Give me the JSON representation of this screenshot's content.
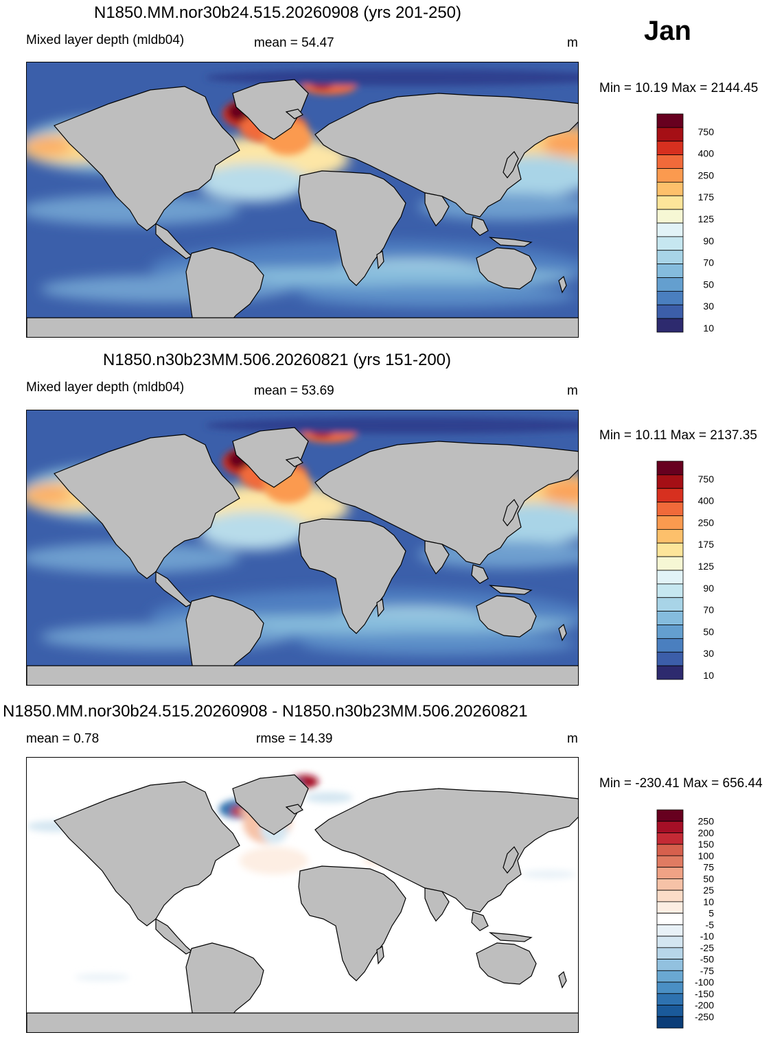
{
  "month": "Jan",
  "units": "m",
  "land_color": "#bebebe",
  "panels": [
    {
      "title": "N1850.MM.nor30b24.515.20260908 (yrs 201-250)",
      "left_label": "Mixed layer depth (mldb04)",
      "stat_label": "mean =  54.47",
      "units": "m",
      "minmax": "Min =  10.19 Max = 2144.45",
      "map_type": "mld"
    },
    {
      "title": "N1850.n30b23MM.506.20260821 (yrs 151-200)",
      "left_label": "Mixed layer depth (mldb04)",
      "stat_label": "mean =  53.69",
      "units": "m",
      "minmax": "Min =  10.11 Max = 2137.35",
      "map_type": "mld"
    },
    {
      "title": "N1850.MM.nor30b24.515.20260908 - N1850.n30b23MM.506.20260821",
      "left_label": "mean =   0.78",
      "stat_label": "rmse =  14.39",
      "units": "m",
      "minmax": "Min = -230.41 Max = 656.44",
      "map_type": "diff"
    }
  ],
  "colorbar_mld": {
    "labels": [
      "750",
      "400",
      "250",
      "175",
      "125",
      "90",
      "70",
      "50",
      "30",
      "10"
    ],
    "colors": [
      "#67001f",
      "#a50f15",
      "#d7301f",
      "#f16a3a",
      "#fb9a4f",
      "#fdc06b",
      "#fde59a",
      "#f6f7d4",
      "#e2f3f7",
      "#c6e7f0",
      "#a8d4e7",
      "#85bcdd",
      "#649fcf",
      "#4a7fbf",
      "#3c5ea9",
      "#2d2a6e"
    ]
  },
  "colorbar_diff": {
    "labels": [
      "250",
      "200",
      "150",
      "100",
      "75",
      "50",
      "25",
      "10",
      "5",
      "-5",
      "-10",
      "-25",
      "-50",
      "-75",
      "-100",
      "-150",
      "-200",
      "-250"
    ],
    "colors": [
      "#67001f",
      "#a50f26",
      "#c42a35",
      "#d6604d",
      "#e07b62",
      "#f0a285",
      "#f6c2a7",
      "#fbdcc8",
      "#fdeee3",
      "#ffffff",
      "#e8f1f7",
      "#d4e6f1",
      "#b7d6e9",
      "#92c1df",
      "#6aa8d2",
      "#4a8fc4",
      "#2e72b0",
      "#1a5a9a",
      "#0b3d78"
    ]
  }
}
